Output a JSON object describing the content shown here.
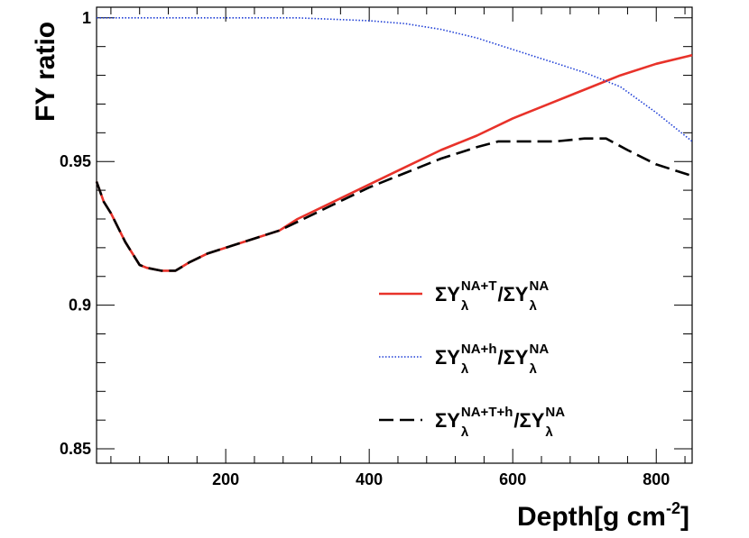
{
  "chart_data": {
    "type": "line",
    "xlabel": "Depth[g cm",
    "xlabel_sup": "-2",
    "xlabel_tail": "]",
    "ylabel": "FY ratio",
    "xlim": [
      20,
      850
    ],
    "ylim": [
      0.845,
      1.0037
    ],
    "x_ticks": [
      200,
      400,
      600,
      800
    ],
    "x_tick_labels": [
      "200",
      "400",
      "600",
      "800"
    ],
    "y_ticks": [
      0.85,
      0.9,
      0.95,
      1.0
    ],
    "y_tick_labels": [
      "0.85",
      "0.9",
      "0.95",
      "1"
    ],
    "grid": false,
    "legend_position": "center-right",
    "series": [
      {
        "legend": {
          "sigma": "ΣY",
          "sub": "λ",
          "sup": "NA+T",
          "slash": "/ΣY",
          "sub2": "λ",
          "sup2": "NA"
        },
        "color": "#e8322a",
        "style": "solid",
        "x": [
          20,
          30,
          40,
          60,
          80,
          90,
          110,
          130,
          150,
          175,
          200,
          225,
          250,
          275,
          300,
          350,
          400,
          450,
          500,
          550,
          600,
          650,
          700,
          750,
          800,
          850
        ],
        "y": [
          0.943,
          0.936,
          0.932,
          0.922,
          0.914,
          0.913,
          0.912,
          0.912,
          0.915,
          0.918,
          0.92,
          0.922,
          0.924,
          0.926,
          0.93,
          0.936,
          0.942,
          0.948,
          0.954,
          0.959,
          0.965,
          0.97,
          0.975,
          0.98,
          0.984,
          0.987
        ]
      },
      {
        "legend": {
          "sigma": "ΣY",
          "sub": "λ",
          "sup": "NA+h",
          "slash": "/ΣY",
          "sub2": "λ",
          "sup2": "NA"
        },
        "color": "#1f3fd6",
        "style": "dotted",
        "x": [
          20,
          100,
          200,
          300,
          400,
          450,
          500,
          550,
          600,
          650,
          700,
          750,
          800,
          850
        ],
        "y": [
          1.0,
          1.0,
          1.0,
          1.0,
          0.999,
          0.998,
          0.996,
          0.993,
          0.989,
          0.985,
          0.981,
          0.976,
          0.967,
          0.957
        ]
      },
      {
        "legend": {
          "sigma": "ΣY",
          "sub": "λ",
          "sup": "NA+T+h",
          "slash": "/ΣY",
          "sub2": "λ",
          "sup2": "NA"
        },
        "color": "#000000",
        "style": "dashed",
        "x": [
          20,
          30,
          40,
          60,
          80,
          90,
          110,
          130,
          150,
          175,
          200,
          225,
          250,
          275,
          300,
          350,
          400,
          450,
          500,
          550,
          580,
          620,
          660,
          700,
          730,
          760,
          800,
          850
        ],
        "y": [
          0.943,
          0.936,
          0.932,
          0.922,
          0.914,
          0.913,
          0.912,
          0.912,
          0.915,
          0.918,
          0.92,
          0.922,
          0.924,
          0.926,
          0.929,
          0.935,
          0.941,
          0.946,
          0.951,
          0.955,
          0.957,
          0.957,
          0.957,
          0.958,
          0.958,
          0.954,
          0.949,
          0.945
        ]
      }
    ]
  }
}
